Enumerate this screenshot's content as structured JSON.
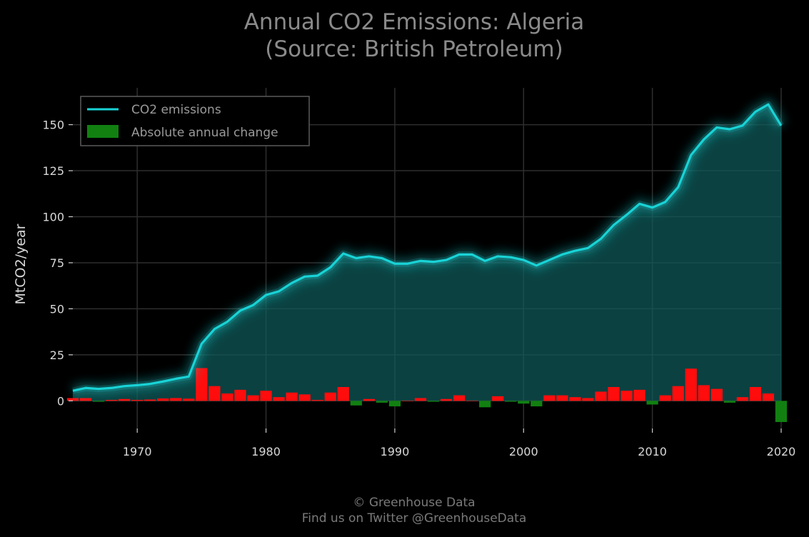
{
  "chart_data": {
    "type": "line",
    "title": "Annual CO2 Emissions: Algeria",
    "subtitle": "(Source: British Petroleum)",
    "ylabel": "MtCO2/year",
    "xlabel": "",
    "xlim": [
      1965,
      2020
    ],
    "ylim": [
      -15,
      170
    ],
    "x_ticks": [
      1970,
      1980,
      1990,
      2000,
      2010,
      2020
    ],
    "y_ticks": [
      0,
      25,
      50,
      75,
      100,
      125,
      150
    ],
    "grid": true,
    "legend_position": "top-left",
    "x": [
      1965,
      1966,
      1967,
      1968,
      1969,
      1970,
      1971,
      1972,
      1973,
      1974,
      1975,
      1976,
      1977,
      1978,
      1979,
      1980,
      1981,
      1982,
      1983,
      1984,
      1985,
      1986,
      1987,
      1988,
      1989,
      1990,
      1991,
      1992,
      1993,
      1994,
      1995,
      1996,
      1997,
      1998,
      1999,
      2000,
      2001,
      2002,
      2003,
      2004,
      2005,
      2006,
      2007,
      2008,
      2009,
      2010,
      2011,
      2012,
      2013,
      2014,
      2015,
      2016,
      2017,
      2018,
      2019,
      2020
    ],
    "series": [
      {
        "name": "CO2 emissions",
        "kind": "line",
        "color": "#19d3d6",
        "values": [
          5.5,
          7,
          6.5,
          7,
          8,
          8.5,
          9.2,
          10.5,
          12,
          13.2,
          31,
          39,
          43,
          49,
          52,
          57.5,
          59.5,
          64,
          67.5,
          68,
          72.5,
          80,
          77.5,
          78.5,
          77.5,
          74.5,
          74.5,
          76,
          75.5,
          76.5,
          79.5,
          79.5,
          76,
          78.5,
          78,
          76.5,
          73.5,
          76.5,
          79.5,
          81.5,
          83,
          88,
          95.5,
          101,
          107,
          105,
          108,
          116,
          133.5,
          142,
          148.5,
          147.5,
          149.5,
          157,
          161,
          149.5
        ]
      },
      {
        "name": "Absolute annual change",
        "kind": "bar",
        "color_positive": "#ff0d0d",
        "color_negative": "#118011",
        "values": [
          1.5,
          1.5,
          -0.5,
          0.5,
          1,
          0.5,
          0.7,
          1.3,
          1.5,
          1.2,
          17.8,
          8,
          4,
          6,
          3,
          5.5,
          2,
          4.5,
          3.5,
          0.5,
          4.5,
          7.5,
          -2.5,
          1,
          -1,
          -3,
          0,
          1.5,
          -0.5,
          1,
          3,
          0,
          -3.5,
          2.5,
          -0.5,
          -1.5,
          -3,
          3,
          3,
          2,
          1.5,
          5,
          7.5,
          5.5,
          6,
          -2,
          3,
          8,
          17.5,
          8.5,
          6.5,
          -1,
          2,
          7.5,
          4,
          -11.5
        ]
      }
    ]
  },
  "footer": {
    "line1": "© Greenhouse Data",
    "line2": "Find us on Twitter @GreenhouseData"
  }
}
